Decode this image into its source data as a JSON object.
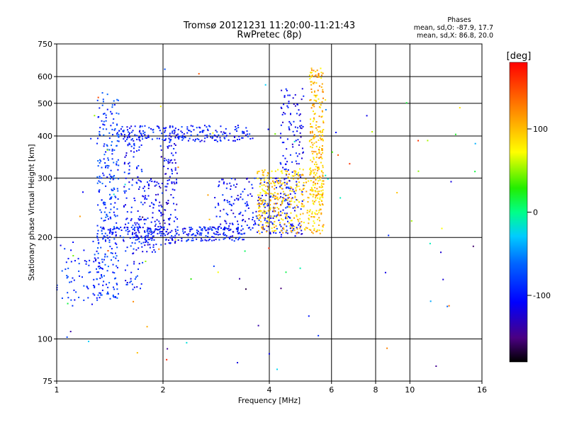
{
  "title_line1": "Tromsø 20121231 11:20:00-11:21:43",
  "title_line2": "RwPretec (8p)",
  "stats": {
    "header": "Phases",
    "line_o": "mean, sd,O: -87.9, 17.7",
    "line_x": "mean, sd,X: 86.8, 20.0"
  },
  "colorbar": {
    "unit_label": "[deg]",
    "ticks": [
      "100",
      "0",
      "-100"
    ],
    "range": [
      -180,
      180
    ],
    "tick_values": [
      100,
      0,
      -100
    ]
  },
  "chart_data": {
    "type": "scatter",
    "xlabel": "Frequency [MHz]",
    "ylabel": "Stationary phase Virtual Height [km]",
    "xscale": "log",
    "yscale": "log",
    "xlim": [
      1,
      16
    ],
    "ylim": [
      75,
      750
    ],
    "x_ticks": [
      1,
      2,
      4,
      6,
      8,
      10,
      16
    ],
    "x_tick_labels": [
      "1",
      "2",
      "4",
      "6",
      "8",
      "10",
      "16"
    ],
    "y_ticks": [
      75,
      100,
      200,
      300,
      400,
      500,
      600,
      750
    ],
    "y_tick_labels": [
      "75",
      "100",
      "200",
      "300",
      "400",
      "500",
      "600",
      "750"
    ],
    "grid": true,
    "color_variable": "phase",
    "color_unit": "deg",
    "clusters": [
      {
        "name": "O-trace lower",
        "x_range": [
          1.0,
          1.35
        ],
        "y_range": [
          125,
          195
        ],
        "phase": -95,
        "count": 70
      },
      {
        "name": "O-trace column 1.4",
        "x_range": [
          1.3,
          1.5
        ],
        "y_range": [
          130,
          540
        ],
        "phase": -85,
        "count": 260
      },
      {
        "name": "O-trace column 1.65",
        "x_range": [
          1.55,
          1.75
        ],
        "y_range": [
          140,
          420
        ],
        "phase": -100,
        "count": 140
      },
      {
        "name": "O-trace column 1.85",
        "x_range": [
          1.75,
          1.95
        ],
        "y_range": [
          180,
          300
        ],
        "phase": -105,
        "count": 80
      },
      {
        "name": "O-trace column 2.1",
        "x_range": [
          1.95,
          2.2
        ],
        "y_range": [
          190,
          420
        ],
        "phase": -110,
        "count": 120
      },
      {
        "name": "E/F1 base 200km",
        "x_range": [
          1.3,
          3.4
        ],
        "y_range": [
          195,
          215
        ],
        "phase": -100,
        "count": 260
      },
      {
        "name": "F-layer 400km",
        "x_range": [
          1.5,
          3.6
        ],
        "y_range": [
          385,
          430
        ],
        "phase": -100,
        "count": 200
      },
      {
        "name": "F2 rising O",
        "x_range": [
          2.8,
          4.6
        ],
        "y_range": [
          205,
          300
        ],
        "phase": -105,
        "count": 220
      },
      {
        "name": "F2 cusp O",
        "x_range": [
          4.3,
          5.0
        ],
        "y_range": [
          200,
          560
        ],
        "phase": -110,
        "count": 160
      },
      {
        "name": "F2 X-trace",
        "x_range": [
          3.7,
          5.7
        ],
        "y_range": [
          205,
          320
        ],
        "phase": 100,
        "count": 380
      },
      {
        "name": "F2 X cusp",
        "x_range": [
          5.2,
          5.7
        ],
        "y_range": [
          260,
          640
        ],
        "phase": 105,
        "count": 220
      },
      {
        "name": "sparse noise",
        "x_range": [
          1.0,
          16.0
        ],
        "y_range": [
          80,
          700
        ],
        "phase": 0,
        "count": 90
      }
    ]
  }
}
